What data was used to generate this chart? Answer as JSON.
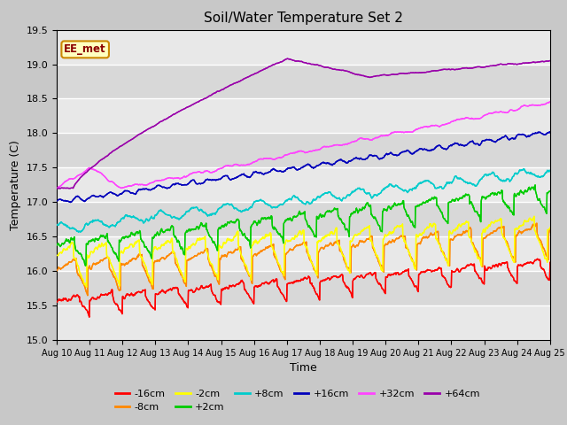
{
  "title": "Soil/Water Temperature Set 2",
  "xlabel": "Time",
  "ylabel": "Temperature (C)",
  "ylim": [
    15.0,
    19.5
  ],
  "x_tick_labels": [
    "Aug 10",
    "Aug 11",
    "Aug 12",
    "Aug 13",
    "Aug 14",
    "Aug 15",
    "Aug 16",
    "Aug 17",
    "Aug 18",
    "Aug 19",
    "Aug 20",
    "Aug 21",
    "Aug 22",
    "Aug 23",
    "Aug 24",
    "Aug 25"
  ],
  "fig_bg_color": "#c8c8c8",
  "plot_bg_color": "#f0f0f0",
  "legend_entries": [
    "-16cm",
    "-8cm",
    "-2cm",
    "+2cm",
    "+8cm",
    "+16cm",
    "+32cm",
    "+64cm"
  ],
  "legend_colors": [
    "#ff0000",
    "#ff8800",
    "#ffff00",
    "#00cc00",
    "#00cccc",
    "#0000bb",
    "#ff44ff",
    "#9900aa"
  ],
  "annotation_text": "EE_met",
  "annotation_bg": "#ffffc0",
  "annotation_border": "#cc8800",
  "n_points": 1500
}
